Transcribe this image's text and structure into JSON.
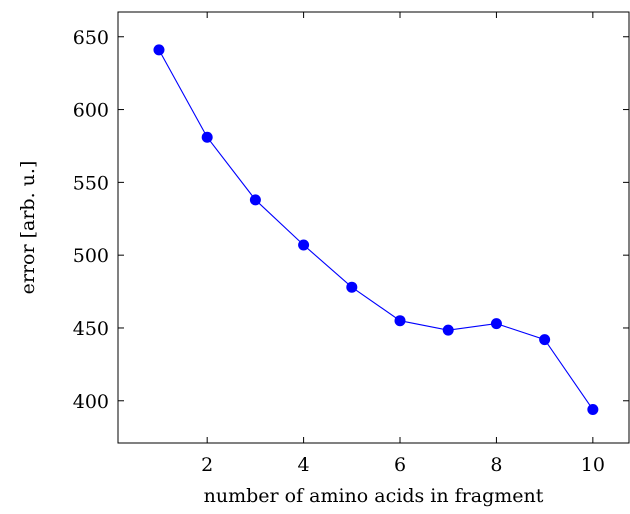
{
  "chart_data": {
    "type": "line",
    "title": "",
    "xlabel": "number of amino acids in fragment",
    "ylabel": "error [arb. u.]",
    "xlim": [
      0.15,
      10.75
    ],
    "ylim": [
      371,
      667
    ],
    "x_ticks": [
      2,
      4,
      6,
      8,
      10
    ],
    "y_ticks": [
      400,
      450,
      500,
      550,
      600,
      650
    ],
    "grid": false,
    "legend": "none",
    "series": [
      {
        "color": "#0000ff",
        "marker": "filled-circle",
        "x": [
          1,
          2,
          3,
          4,
          5,
          6,
          7,
          8,
          9,
          10
        ],
        "y": [
          641,
          581,
          538,
          507,
          478,
          455,
          448.5,
          453,
          442,
          394
        ]
      }
    ]
  }
}
